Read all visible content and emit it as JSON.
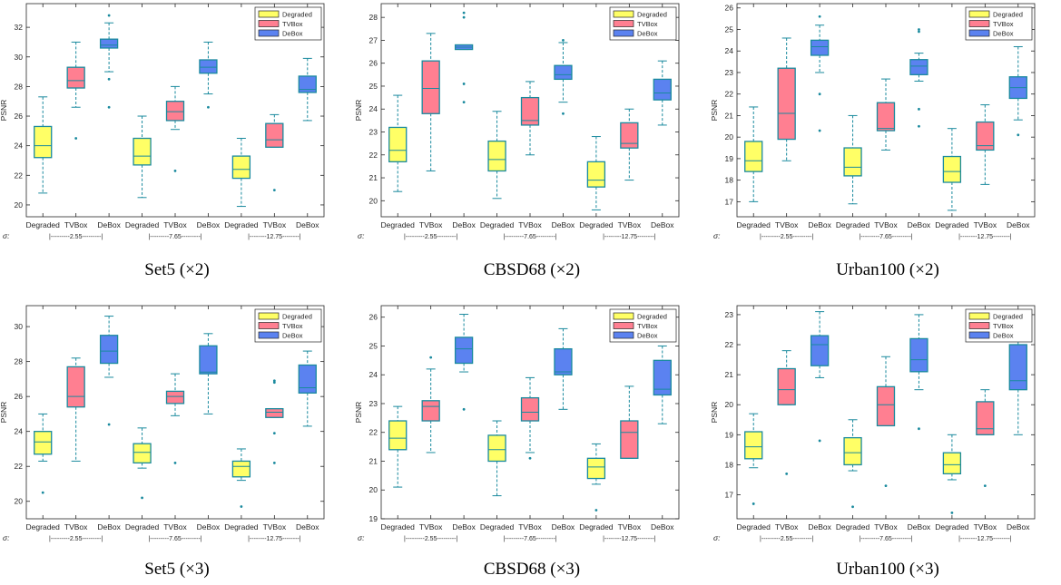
{
  "colors": {
    "Degraded": "#ffff66",
    "TVBox": "#ff7f91",
    "DeBox": "#5b82f0",
    "stroke": "#1a8a9e"
  },
  "chart_data": [
    {
      "type": "box",
      "caption": "Set5 (×2)",
      "ylabel": "PSNR",
      "ylim": [
        19.2,
        33.6
      ],
      "yticks": [
        20,
        22,
        24,
        26,
        28,
        30,
        32
      ],
      "sigma_label": "σ:",
      "sigma_groups": [
        "|---------2.55---------|",
        "|---------7.65---------|",
        "|--------12.75--------|"
      ],
      "categories": [
        "Degraded",
        "TVBox",
        "DeBox",
        "Degraded",
        "TVBox",
        "DeBox",
        "Degraded",
        "TVBox",
        "DeBox"
      ],
      "legend": [
        "Degraded",
        "TVBox",
        "DeBox"
      ],
      "boxes": [
        {
          "series": "Degraded",
          "min": 20.8,
          "q1": 23.2,
          "median": 24.0,
          "q3": 25.3,
          "max": 27.3,
          "outliers": []
        },
        {
          "series": "TVBox",
          "min": 26.6,
          "q1": 27.9,
          "median": 28.4,
          "q3": 29.3,
          "max": 31.0,
          "outliers": [
            24.5
          ]
        },
        {
          "series": "DeBox",
          "min": 29.0,
          "q1": 30.6,
          "median": 30.8,
          "q3": 31.2,
          "max": 32.3,
          "outliers": [
            32.8,
            28.5,
            26.6
          ]
        },
        {
          "series": "Degraded",
          "min": 20.5,
          "q1": 22.7,
          "median": 23.3,
          "q3": 24.5,
          "max": 26.0,
          "outliers": []
        },
        {
          "series": "TVBox",
          "min": 25.1,
          "q1": 25.7,
          "median": 26.3,
          "q3": 27.0,
          "max": 28.0,
          "outliers": [
            22.3
          ]
        },
        {
          "series": "DeBox",
          "min": 27.5,
          "q1": 28.9,
          "median": 29.3,
          "q3": 29.8,
          "max": 31.0,
          "outliers": [
            26.6
          ]
        },
        {
          "series": "Degraded",
          "min": 19.9,
          "q1": 21.8,
          "median": 22.4,
          "q3": 23.3,
          "max": 24.5,
          "outliers": []
        },
        {
          "series": "TVBox",
          "min": 23.9,
          "q1": 23.9,
          "median": 24.4,
          "q3": 25.5,
          "max": 26.1,
          "outliers": [
            21.0
          ]
        },
        {
          "series": "DeBox",
          "min": 25.7,
          "q1": 27.6,
          "median": 27.8,
          "q3": 28.7,
          "max": 29.9,
          "outliers": []
        }
      ]
    },
    {
      "type": "box",
      "caption": "CBSD68 (×2)",
      "ylabel": "PSNR",
      "ylim": [
        19.3,
        28.6
      ],
      "yticks": [
        20,
        21,
        22,
        23,
        24,
        25,
        26,
        27,
        28
      ],
      "sigma_label": "σ:",
      "sigma_groups": [
        "|---------2.55---------|",
        "|---------7.65---------|",
        "|--------12.75--------|"
      ],
      "categories": [
        "Degraded",
        "TVBox",
        "DeBox",
        "Degraded",
        "TVBox",
        "DeBox",
        "Degraded",
        "TVBox",
        "DeBox"
      ],
      "legend": [
        "Degraded",
        "TVBox",
        "DeBox"
      ],
      "boxes": [
        {
          "series": "Degraded",
          "min": 20.4,
          "q1": 21.7,
          "median": 22.2,
          "q3": 23.2,
          "max": 24.6,
          "outliers": []
        },
        {
          "series": "TVBox",
          "min": 21.3,
          "q1": 23.8,
          "median": 24.9,
          "q3": 26.1,
          "max": 27.3,
          "outliers": []
        },
        {
          "series": "DeBox",
          "min": 26.6,
          "q1": 26.6,
          "median": 26.7,
          "q3": 26.8,
          "max": 26.8,
          "outliers": [
            28.2,
            28.0,
            25.1,
            24.3
          ]
        },
        {
          "series": "Degraded",
          "min": 20.1,
          "q1": 21.3,
          "median": 21.8,
          "q3": 22.6,
          "max": 23.9,
          "outliers": []
        },
        {
          "series": "TVBox",
          "min": 22.0,
          "q1": 23.3,
          "median": 23.5,
          "q3": 24.5,
          "max": 25.2,
          "outliers": []
        },
        {
          "series": "DeBox",
          "min": 24.3,
          "q1": 25.3,
          "median": 25.5,
          "q3": 25.9,
          "max": 26.9,
          "outliers": [
            27.0,
            23.8
          ]
        },
        {
          "series": "Degraded",
          "min": 19.6,
          "q1": 20.6,
          "median": 20.9,
          "q3": 21.7,
          "max": 22.8,
          "outliers": []
        },
        {
          "series": "TVBox",
          "min": 20.9,
          "q1": 22.3,
          "median": 22.5,
          "q3": 23.4,
          "max": 24.0,
          "outliers": []
        },
        {
          "series": "DeBox",
          "min": 23.3,
          "q1": 24.4,
          "median": 24.7,
          "q3": 25.3,
          "max": 26.1,
          "outliers": []
        }
      ]
    },
    {
      "type": "box",
      "caption": "Urban100 (×2)",
      "ylabel": "PSNR",
      "ylim": [
        16.3,
        26.2
      ],
      "yticks": [
        17,
        18,
        19,
        20,
        21,
        22,
        23,
        24,
        25,
        26
      ],
      "sigma_label": "σ:",
      "sigma_groups": [
        "|---------2.55---------|",
        "|---------7.65---------|",
        "|--------12.75--------|"
      ],
      "categories": [
        "Degraded",
        "TVBox",
        "DeBox",
        "Degraded",
        "TVBox",
        "DeBox",
        "Degraded",
        "TVBox",
        "DeBox"
      ],
      "legend": [
        "Degraded",
        "TVBox",
        "DeBox"
      ],
      "boxes": [
        {
          "series": "Degraded",
          "min": 17.0,
          "q1": 18.4,
          "median": 18.9,
          "q3": 19.8,
          "max": 21.4,
          "outliers": []
        },
        {
          "series": "TVBox",
          "min": 18.9,
          "q1": 19.9,
          "median": 21.1,
          "q3": 23.2,
          "max": 24.6,
          "outliers": []
        },
        {
          "series": "DeBox",
          "min": 23.0,
          "q1": 23.8,
          "median": 24.2,
          "q3": 24.5,
          "max": 25.2,
          "outliers": [
            25.6,
            22.0,
            20.3
          ]
        },
        {
          "series": "Degraded",
          "min": 16.9,
          "q1": 18.2,
          "median": 18.6,
          "q3": 19.5,
          "max": 21.0,
          "outliers": []
        },
        {
          "series": "TVBox",
          "min": 19.4,
          "q1": 20.3,
          "median": 20.4,
          "q3": 21.6,
          "max": 22.7,
          "outliers": []
        },
        {
          "series": "DeBox",
          "min": 22.6,
          "q1": 22.9,
          "median": 23.3,
          "q3": 23.6,
          "max": 23.9,
          "outliers": [
            25.0,
            24.9,
            21.3,
            20.5
          ]
        },
        {
          "series": "Degraded",
          "min": 16.6,
          "q1": 17.9,
          "median": 18.4,
          "q3": 19.1,
          "max": 20.4,
          "outliers": []
        },
        {
          "series": "TVBox",
          "min": 17.8,
          "q1": 19.4,
          "median": 19.6,
          "q3": 20.7,
          "max": 21.5,
          "outliers": []
        },
        {
          "series": "DeBox",
          "min": 20.8,
          "q1": 21.8,
          "median": 22.3,
          "q3": 22.8,
          "max": 24.2,
          "outliers": [
            20.1
          ]
        }
      ]
    },
    {
      "type": "box",
      "caption": "Set5 (×3)",
      "ylabel": "PSNR",
      "ylim": [
        19.0,
        31.2
      ],
      "yticks": [
        20,
        22,
        24,
        26,
        28,
        30
      ],
      "sigma_label": "σ:",
      "sigma_groups": [
        "|---------2.55---------|",
        "|---------7.65---------|",
        "|--------12.75--------|"
      ],
      "categories": [
        "Degraded",
        "TVBox",
        "DeBox",
        "Degraded",
        "TVBox",
        "DeBox",
        "Degraded",
        "TVBox",
        "DeBox"
      ],
      "legend": [
        "Degraded",
        "TVBox",
        "DeBox"
      ],
      "boxes": [
        {
          "series": "Degraded",
          "min": 22.3,
          "q1": 22.7,
          "median": 23.4,
          "q3": 24.0,
          "max": 25.0,
          "outliers": [
            20.5
          ]
        },
        {
          "series": "TVBox",
          "min": 22.3,
          "q1": 25.4,
          "median": 26.0,
          "q3": 27.7,
          "max": 28.2,
          "outliers": []
        },
        {
          "series": "DeBox",
          "min": 27.1,
          "q1": 27.9,
          "median": 28.6,
          "q3": 29.5,
          "max": 30.6,
          "outliers": [
            24.4
          ]
        },
        {
          "series": "Degraded",
          "min": 21.9,
          "q1": 22.2,
          "median": 22.8,
          "q3": 23.3,
          "max": 24.2,
          "outliers": [
            20.2
          ]
        },
        {
          "series": "TVBox",
          "min": 24.9,
          "q1": 25.6,
          "median": 26.0,
          "q3": 26.3,
          "max": 27.3,
          "outliers": [
            22.2
          ]
        },
        {
          "series": "DeBox",
          "min": 25.0,
          "q1": 27.3,
          "median": 27.4,
          "q3": 28.9,
          "max": 29.6,
          "outliers": []
        },
        {
          "series": "Degraded",
          "min": 21.2,
          "q1": 21.4,
          "median": 22.0,
          "q3": 22.3,
          "max": 23.0,
          "outliers": [
            19.7
          ]
        },
        {
          "series": "TVBox",
          "min": 24.8,
          "q1": 24.8,
          "median": 25.1,
          "q3": 25.3,
          "max": 25.3,
          "outliers": [
            26.9,
            26.8,
            23.9,
            22.2
          ]
        },
        {
          "series": "DeBox",
          "min": 24.3,
          "q1": 26.2,
          "median": 26.5,
          "q3": 27.8,
          "max": 28.6,
          "outliers": []
        }
      ]
    },
    {
      "type": "box",
      "caption": "CBSD68 (×3)",
      "ylabel": "PSNR",
      "ylim": [
        19.0,
        26.4
      ],
      "yticks": [
        19,
        20,
        21,
        22,
        23,
        24,
        25,
        26
      ],
      "sigma_label": "σ:",
      "sigma_groups": [
        "|---------2.55---------|",
        "|---------7.65---------|",
        "|--------12.75--------|"
      ],
      "categories": [
        "Degraded",
        "TVBox",
        "DeBox",
        "Degraded",
        "TVBox",
        "DeBox",
        "Degraded",
        "TVBox",
        "DeBox"
      ],
      "legend": [
        "Degraded",
        "TVBox",
        "DeBox"
      ],
      "boxes": [
        {
          "series": "Degraded",
          "min": 20.1,
          "q1": 21.4,
          "median": 21.8,
          "q3": 22.4,
          "max": 22.9,
          "outliers": []
        },
        {
          "series": "TVBox",
          "min": 21.3,
          "q1": 22.4,
          "median": 22.9,
          "q3": 23.1,
          "max": 24.2,
          "outliers": [
            24.6
          ]
        },
        {
          "series": "DeBox",
          "min": 24.1,
          "q1": 24.4,
          "median": 24.9,
          "q3": 25.3,
          "max": 26.1,
          "outliers": [
            22.8
          ]
        },
        {
          "series": "Degraded",
          "min": 19.8,
          "q1": 21.0,
          "median": 21.4,
          "q3": 21.9,
          "max": 22.4,
          "outliers": []
        },
        {
          "series": "TVBox",
          "min": 21.3,
          "q1": 22.4,
          "median": 22.7,
          "q3": 23.2,
          "max": 23.9,
          "outliers": [
            21.1
          ]
        },
        {
          "series": "DeBox",
          "min": 22.8,
          "q1": 24.0,
          "median": 24.1,
          "q3": 24.9,
          "max": 25.6,
          "outliers": []
        },
        {
          "series": "Degraded",
          "min": 20.2,
          "q1": 20.4,
          "median": 20.8,
          "q3": 21.1,
          "max": 21.6,
          "outliers": [
            19.3
          ]
        },
        {
          "series": "TVBox",
          "min": 21.1,
          "q1": 21.1,
          "median": 22.0,
          "q3": 22.4,
          "max": 23.6,
          "outliers": []
        },
        {
          "series": "DeBox",
          "min": 22.3,
          "q1": 23.3,
          "median": 23.5,
          "q3": 24.5,
          "max": 25.0,
          "outliers": []
        }
      ]
    },
    {
      "type": "box",
      "caption": "Urban100 (×3)",
      "ylabel": "PSNR",
      "ylim": [
        16.2,
        23.3
      ],
      "yticks": [
        17,
        18,
        19,
        20,
        21,
        22,
        23
      ],
      "sigma_label": "σ:",
      "sigma_groups": [
        "|---------2.55---------|",
        "|---------7.65---------|",
        "|--------12.75--------|"
      ],
      "categories": [
        "Degraded",
        "TVBox",
        "DeBox",
        "Degraded",
        "TVBox",
        "DeBox",
        "Degraded",
        "TVBox",
        "DeBox"
      ],
      "legend": [
        "Degraded",
        "TVBox",
        "DeBox"
      ],
      "boxes": [
        {
          "series": "Degraded",
          "min": 17.9,
          "q1": 18.2,
          "median": 18.6,
          "q3": 19.1,
          "max": 19.7,
          "outliers": [
            16.7
          ]
        },
        {
          "series": "TVBox",
          "min": 20.0,
          "q1": 20.0,
          "median": 20.5,
          "q3": 21.2,
          "max": 21.8,
          "outliers": [
            17.7
          ]
        },
        {
          "series": "DeBox",
          "min": 20.9,
          "q1": 21.3,
          "median": 22.0,
          "q3": 22.3,
          "max": 23.1,
          "outliers": [
            18.8
          ]
        },
        {
          "series": "Degraded",
          "min": 17.8,
          "q1": 18.0,
          "median": 18.4,
          "q3": 18.9,
          "max": 19.5,
          "outliers": [
            16.6
          ]
        },
        {
          "series": "TVBox",
          "min": 19.3,
          "q1": 19.3,
          "median": 20.0,
          "q3": 20.6,
          "max": 21.6,
          "outliers": [
            17.3
          ]
        },
        {
          "series": "DeBox",
          "min": 20.5,
          "q1": 21.1,
          "median": 21.5,
          "q3": 22.2,
          "max": 23.0,
          "outliers": [
            19.2
          ]
        },
        {
          "series": "Degraded",
          "min": 17.5,
          "q1": 17.7,
          "median": 18.0,
          "q3": 18.4,
          "max": 19.0,
          "outliers": [
            16.4
          ]
        },
        {
          "series": "TVBox",
          "min": 19.0,
          "q1": 19.0,
          "median": 19.2,
          "q3": 20.1,
          "max": 20.5,
          "outliers": [
            17.3
          ]
        },
        {
          "series": "DeBox",
          "min": 19.0,
          "q1": 20.5,
          "median": 20.8,
          "q3": 22.0,
          "max": 22.7,
          "outliers": []
        }
      ]
    }
  ]
}
